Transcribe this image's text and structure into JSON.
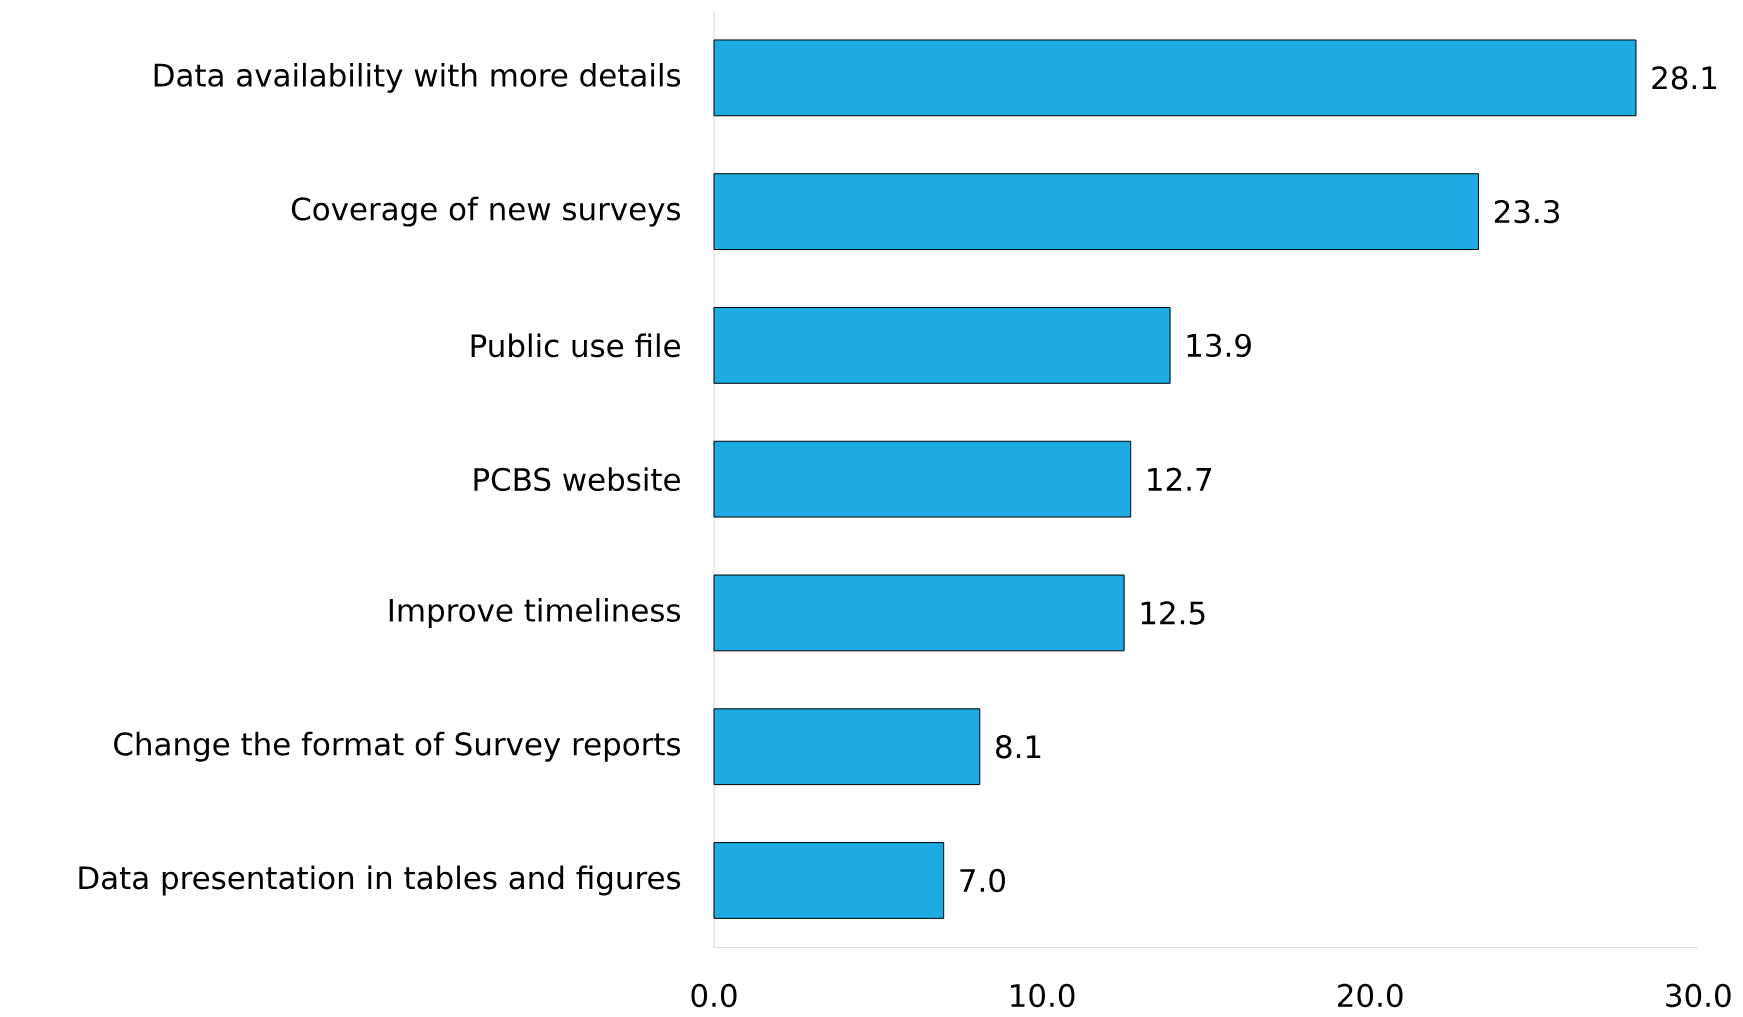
{
  "chart_data": {
    "type": "bar",
    "orientation": "horizontal",
    "categories": [
      "Data availability with more details",
      "Coverage of new surveys",
      "Public use file",
      "PCBS website",
      "Improve timeliness",
      "Change the format of Survey reports",
      "Data presentation in tables and figures"
    ],
    "values": [
      28.1,
      23.3,
      13.9,
      12.7,
      12.5,
      8.1,
      7.0
    ],
    "value_labels": [
      "28.1",
      "23.3",
      "13.9",
      "12.7",
      "12.5",
      "8.1",
      "7.0"
    ],
    "color": "#1eabe3",
    "xlim": [
      0,
      30
    ],
    "xticks": [
      {
        "value": 0,
        "label": "0.0"
      },
      {
        "value": 10,
        "label": "10.0"
      },
      {
        "value": 20,
        "label": "20.0"
      },
      {
        "value": 30,
        "label": "30.0"
      }
    ],
    "grid": false
  }
}
